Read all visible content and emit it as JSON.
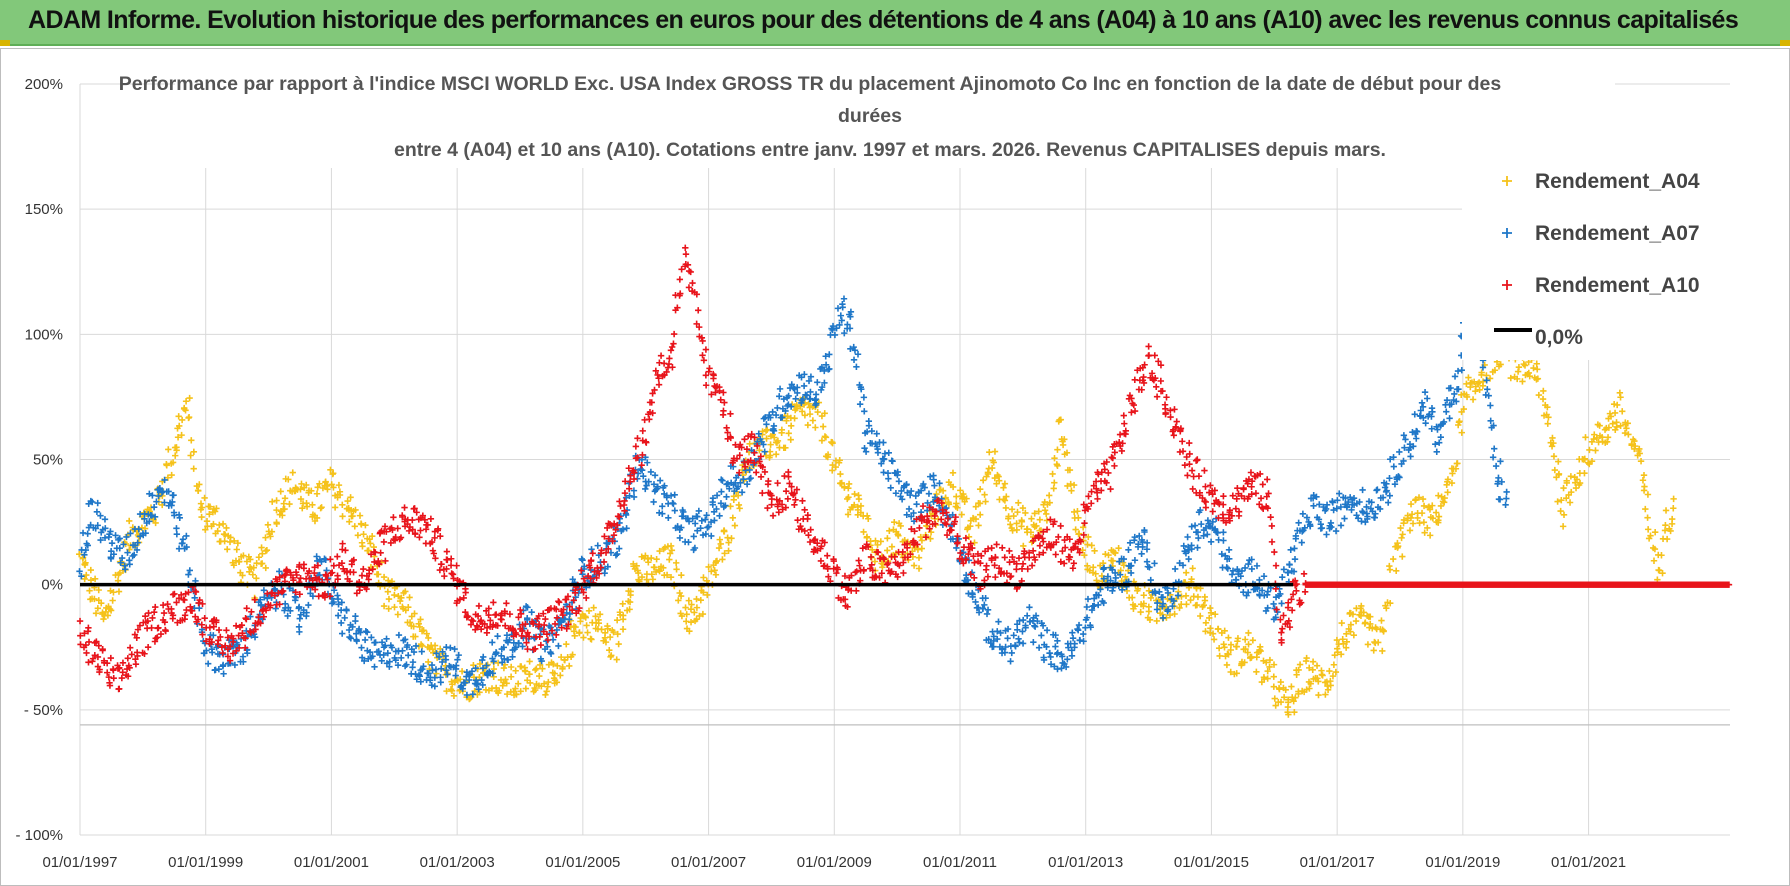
{
  "header": {
    "title": "ADAM Informe. Evolution historique des performances en euros pour des détentions de 4 ans (A04) à 10 ans (A10) avec les revenus connus capitalisés"
  },
  "chart_data": {
    "type": "scatter",
    "title_lines": [
      "Performance par rapport à l'indice MSCI WORLD Exc. USA Index GROSS TR  du placement Ajinomoto Co Inc en fonction de la date de début pour des",
      "durées",
      "entre 4 (A04) et 10 ans (A10). Cotations entre janv. 1997 et mars. 2026. Revenus CAPITALISES depuis mars."
    ],
    "xlabel": "",
    "ylabel": "",
    "x_range": [
      "1997-01-01",
      "2023-03-31"
    ],
    "ylim": [
      -100,
      200
    ],
    "y_ticks": [
      200,
      150,
      100,
      50,
      0,
      -50,
      -100
    ],
    "y_tick_labels": [
      "200%",
      "150%",
      "100%",
      "50%",
      "0%",
      "- 50%",
      "- 100%"
    ],
    "x_tick_labels": [
      "01/01/1997",
      "01/01/1999",
      "01/01/2001",
      "01/01/2003",
      "01/01/2005",
      "01/01/2007",
      "01/01/2009",
      "01/01/2011",
      "01/01/2013",
      "01/01/2015",
      "01/01/2017",
      "01/01/2019",
      "01/01/2021"
    ],
    "x_tick_years": [
      1997,
      1999,
      2001,
      2003,
      2005,
      2007,
      2009,
      2011,
      2013,
      2015,
      2017,
      2019,
      2021
    ],
    "grid": true,
    "legend_position": "top-right",
    "legend": [
      {
        "label": "Rendement_A04",
        "color": "#f5c21b",
        "marker": "+"
      },
      {
        "label": "Rendement_A07",
        "color": "#1f77c8",
        "marker": "+"
      },
      {
        "label": "Rendement_A10",
        "color": "#e8141b",
        "marker": "+"
      },
      {
        "label": "0,0%",
        "color": "#000000",
        "marker": "line"
      }
    ],
    "series": [
      {
        "name": "Rendement_A04",
        "color": "#f5c21b",
        "points": [
          [
            1997.0,
            10
          ],
          [
            1997.4,
            -15
          ],
          [
            1997.8,
            20
          ],
          [
            1998.2,
            30
          ],
          [
            1998.5,
            55
          ],
          [
            1998.7,
            72
          ],
          [
            1998.9,
            30
          ],
          [
            1999.2,
            25
          ],
          [
            1999.5,
            10
          ],
          [
            1999.8,
            0
          ],
          [
            2000.1,
            30
          ],
          [
            2000.4,
            40
          ],
          [
            2000.7,
            30
          ],
          [
            2001.0,
            40
          ],
          [
            2001.3,
            30
          ],
          [
            2001.6,
            15
          ],
          [
            2001.9,
            -5
          ],
          [
            2002.2,
            -10
          ],
          [
            2002.5,
            -25
          ],
          [
            2002.8,
            -35
          ],
          [
            2003.1,
            -40
          ],
          [
            2003.5,
            -35
          ],
          [
            2003.9,
            -40
          ],
          [
            2004.3,
            -35
          ],
          [
            2004.6,
            -40
          ],
          [
            2004.9,
            -15
          ],
          [
            2005.2,
            -15
          ],
          [
            2005.5,
            -25
          ],
          [
            2005.8,
            5
          ],
          [
            2006.1,
            5
          ],
          [
            2006.4,
            10
          ],
          [
            2006.7,
            -15
          ],
          [
            2007.0,
            0
          ],
          [
            2007.3,
            20
          ],
          [
            2007.6,
            50
          ],
          [
            2007.9,
            55
          ],
          [
            2008.2,
            60
          ],
          [
            2008.5,
            70
          ],
          [
            2008.8,
            65
          ],
          [
            2009.1,
            40
          ],
          [
            2009.4,
            30
          ],
          [
            2009.7,
            10
          ],
          [
            2010.0,
            20
          ],
          [
            2010.3,
            10
          ],
          [
            2010.6,
            30
          ],
          [
            2010.9,
            40
          ],
          [
            2011.2,
            20
          ],
          [
            2011.5,
            50
          ],
          [
            2011.8,
            30
          ],
          [
            2012.1,
            20
          ],
          [
            2012.4,
            30
          ],
          [
            2012.6,
            65
          ],
          [
            2012.9,
            20
          ],
          [
            2013.2,
            5
          ],
          [
            2013.5,
            10
          ],
          [
            2013.8,
            -5
          ],
          [
            2014.1,
            -10
          ],
          [
            2014.4,
            -5
          ],
          [
            2014.7,
            0
          ],
          [
            2015.0,
            -15
          ],
          [
            2015.3,
            -30
          ],
          [
            2015.6,
            -25
          ],
          [
            2015.9,
            -35
          ],
          [
            2016.2,
            -50
          ],
          [
            2016.5,
            -35
          ],
          [
            2016.8,
            -40
          ],
          [
            2017.1,
            -20
          ],
          [
            2017.4,
            -15
          ],
          [
            2017.7,
            -25
          ],
          [
            2017.9,
            10
          ],
          [
            2018.2,
            30
          ],
          [
            2018.5,
            25
          ],
          [
            2018.8,
            40
          ],
          [
            2019.0,
            70
          ],
          [
            2019.3,
            85
          ],
          [
            2019.6,
            95
          ],
          [
            2019.9,
            85
          ],
          [
            2020.1,
            90
          ],
          [
            2020.4,
            60
          ],
          [
            2020.6,
            30
          ],
          [
            2020.9,
            50
          ],
          [
            2021.2,
            60
          ],
          [
            2021.5,
            70
          ],
          [
            2021.8,
            50
          ],
          [
            2022.0,
            20
          ],
          [
            2022.1,
            5
          ],
          [
            2022.3,
            30
          ],
          [
            2022.35,
            40
          ]
        ]
      },
      {
        "name": "Rendement_A07",
        "color": "#1f77c8",
        "points": [
          [
            1997.0,
            10
          ],
          [
            1997.2,
            30
          ],
          [
            1997.4,
            20
          ],
          [
            1997.7,
            10
          ],
          [
            1998.0,
            25
          ],
          [
            1998.3,
            40
          ],
          [
            1998.5,
            30
          ],
          [
            1998.7,
            10
          ],
          [
            1999.0,
            -25
          ],
          [
            1999.3,
            -30
          ],
          [
            1999.6,
            -25
          ],
          [
            1999.9,
            -10
          ],
          [
            2000.2,
            0
          ],
          [
            2000.5,
            -15
          ],
          [
            2000.8,
            10
          ],
          [
            2001.1,
            -10
          ],
          [
            2001.4,
            -20
          ],
          [
            2001.7,
            -30
          ],
          [
            2002.0,
            -25
          ],
          [
            2002.3,
            -30
          ],
          [
            2002.6,
            -35
          ],
          [
            2002.9,
            -30
          ],
          [
            2003.2,
            -40
          ],
          [
            2003.5,
            -30
          ],
          [
            2003.8,
            -25
          ],
          [
            2004.1,
            -15
          ],
          [
            2004.4,
            -25
          ],
          [
            2004.7,
            -15
          ],
          [
            2005.0,
            5
          ],
          [
            2005.3,
            10
          ],
          [
            2005.6,
            20
          ],
          [
            2005.9,
            50
          ],
          [
            2006.1,
            40
          ],
          [
            2006.4,
            30
          ],
          [
            2006.7,
            20
          ],
          [
            2007.0,
            25
          ],
          [
            2007.3,
            40
          ],
          [
            2007.6,
            45
          ],
          [
            2007.9,
            60
          ],
          [
            2008.2,
            75
          ],
          [
            2008.5,
            80
          ],
          [
            2008.7,
            75
          ],
          [
            2008.9,
            90
          ],
          [
            2009.1,
            110
          ],
          [
            2009.3,
            100
          ],
          [
            2009.5,
            60
          ],
          [
            2009.8,
            50
          ],
          [
            2010.0,
            40
          ],
          [
            2010.3,
            30
          ],
          [
            2010.6,
            40
          ],
          [
            2010.9,
            20
          ],
          [
            2011.2,
            0
          ],
          [
            2011.5,
            -20
          ],
          [
            2011.8,
            -25
          ],
          [
            2012.1,
            -15
          ],
          [
            2012.4,
            -25
          ],
          [
            2012.7,
            -30
          ],
          [
            2013.0,
            -15
          ],
          [
            2013.3,
            0
          ],
          [
            2013.6,
            5
          ],
          [
            2013.9,
            20
          ],
          [
            2014.2,
            -10
          ],
          [
            2014.5,
            5
          ],
          [
            2014.8,
            25
          ],
          [
            2015.1,
            20
          ],
          [
            2015.4,
            0
          ],
          [
            2015.7,
            5
          ],
          [
            2016.0,
            -10
          ],
          [
            2016.3,
            10
          ],
          [
            2016.6,
            30
          ],
          [
            2016.9,
            25
          ],
          [
            2017.2,
            35
          ],
          [
            2017.5,
            30
          ],
          [
            2017.8,
            40
          ],
          [
            2018.1,
            55
          ],
          [
            2018.4,
            70
          ],
          [
            2018.6,
            60
          ],
          [
            2018.9,
            80
          ],
          [
            2019.1,
            110
          ],
          [
            2019.3,
            95
          ],
          [
            2019.5,
            50
          ],
          [
            2019.7,
            30
          ]
        ]
      },
      {
        "name": "Rendement_A10",
        "color": "#e8141b",
        "points": [
          [
            1997.0,
            -20
          ],
          [
            1997.3,
            -30
          ],
          [
            1997.6,
            -40
          ],
          [
            1997.9,
            -25
          ],
          [
            1998.2,
            -15
          ],
          [
            1998.5,
            -10
          ],
          [
            1998.8,
            -5
          ],
          [
            1999.1,
            -20
          ],
          [
            1999.4,
            -25
          ],
          [
            1999.7,
            -15
          ],
          [
            2000.0,
            -5
          ],
          [
            2000.3,
            0
          ],
          [
            2000.6,
            5
          ],
          [
            2000.9,
            0
          ],
          [
            2001.2,
            10
          ],
          [
            2001.5,
            0
          ],
          [
            2001.8,
            15
          ],
          [
            2002.1,
            25
          ],
          [
            2002.4,
            25
          ],
          [
            2002.7,
            15
          ],
          [
            2003.0,
            0
          ],
          [
            2003.3,
            -15
          ],
          [
            2003.6,
            -10
          ],
          [
            2003.9,
            -15
          ],
          [
            2004.2,
            -20
          ],
          [
            2004.5,
            -15
          ],
          [
            2004.8,
            -10
          ],
          [
            2005.1,
            5
          ],
          [
            2005.4,
            15
          ],
          [
            2005.7,
            40
          ],
          [
            2006.0,
            60
          ],
          [
            2006.2,
            85
          ],
          [
            2006.4,
            90
          ],
          [
            2006.6,
            130
          ],
          [
            2006.8,
            110
          ],
          [
            2007.0,
            80
          ],
          [
            2007.2,
            80
          ],
          [
            2007.4,
            50
          ],
          [
            2007.7,
            55
          ],
          [
            2008.0,
            30
          ],
          [
            2008.3,
            40
          ],
          [
            2008.6,
            20
          ],
          [
            2008.9,
            10
          ],
          [
            2009.2,
            -5
          ],
          [
            2009.5,
            10
          ],
          [
            2009.8,
            5
          ],
          [
            2010.1,
            10
          ],
          [
            2010.4,
            25
          ],
          [
            2010.7,
            30
          ],
          [
            2011.0,
            15
          ],
          [
            2011.3,
            5
          ],
          [
            2011.6,
            10
          ],
          [
            2011.9,
            5
          ],
          [
            2012.2,
            15
          ],
          [
            2012.5,
            20
          ],
          [
            2012.8,
            10
          ],
          [
            2013.1,
            35
          ],
          [
            2013.4,
            45
          ],
          [
            2013.7,
            70
          ],
          [
            2014.0,
            90
          ],
          [
            2014.2,
            80
          ],
          [
            2014.4,
            65
          ],
          [
            2014.7,
            45
          ],
          [
            2015.0,
            35
          ],
          [
            2015.3,
            30
          ],
          [
            2015.6,
            40
          ],
          [
            2015.9,
            35
          ],
          [
            2016.1,
            -20
          ],
          [
            2016.3,
            -5
          ],
          [
            2016.5,
            0
          ],
          [
            2017.0,
            0
          ],
          [
            2018.0,
            0
          ],
          [
            2019.0,
            0
          ],
          [
            2020.0,
            0
          ],
          [
            2021.0,
            0
          ],
          [
            2022.0,
            0
          ],
          [
            2023.0,
            0
          ],
          [
            2023.25,
            0
          ]
        ]
      }
    ],
    "reference_line": {
      "name": "0,0%",
      "y": 0,
      "color": "#000000"
    }
  }
}
